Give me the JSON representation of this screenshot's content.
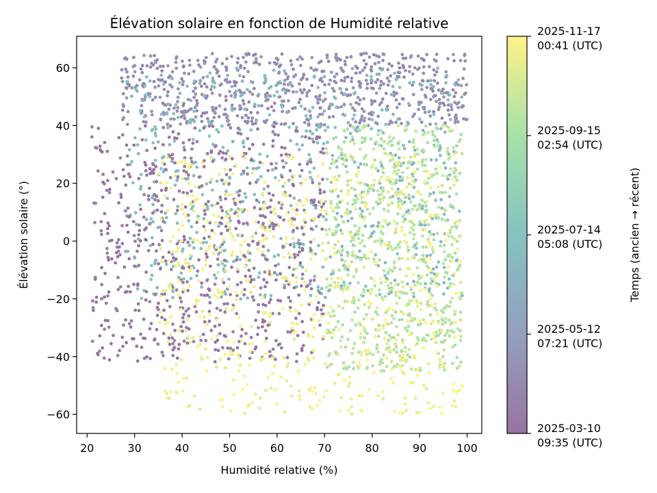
{
  "chart_data": {
    "type": "scatter",
    "title": "Élévation solaire en fonction de Humidité relative",
    "xlabel": "Humidité relative (%)",
    "ylabel": "Élévation solaire (°)",
    "xlim": [
      17.8,
      103.1
    ],
    "ylim": [
      -66.6,
      70.9
    ],
    "xticks": [
      "20",
      "30",
      "40",
      "50",
      "60",
      "70",
      "80",
      "90",
      "100"
    ],
    "yticks": [
      "−60",
      "−40",
      "−20",
      "0",
      "20",
      "40",
      "60"
    ],
    "grid": false,
    "colormap": "viridis",
    "colormap_stops": [
      "#440154",
      "#3b528b",
      "#21918c",
      "#5ec962",
      "#fde725"
    ],
    "point_alpha": 0.55,
    "colorbar": {
      "label": "Temps (ancien → récent)",
      "ticks": [
        {
          "date": "2025-03-10",
          "time": "09:35 (UTC)"
        },
        {
          "date": "2025-05-12",
          "time": "07:21 (UTC)"
        },
        {
          "date": "2025-07-14",
          "time": "05:08 (UTC)"
        },
        {
          "date": "2025-09-15",
          "time": "02:54 (UTC)"
        },
        {
          "date": "2025-11-17",
          "time": "00:41 (UTC)"
        }
      ]
    },
    "clusters": [
      {
        "time_fraction": 0.15,
        "x_range": [
          27,
          100
        ],
        "y_range": [
          40,
          65
        ],
        "description": "older points, high elevation band"
      },
      {
        "time_fraction": 0.45,
        "x_range": [
          28,
          99
        ],
        "y_range": [
          -20,
          60
        ],
        "description": "mid-season points, broad spread"
      },
      {
        "time_fraction": 0.02,
        "x_range": [
          21,
          70
        ],
        "y_range": [
          -42,
          40
        ],
        "description": "earliest points, low humidity arc"
      },
      {
        "time_fraction": 0.8,
        "x_range": [
          70,
          99
        ],
        "y_range": [
          -45,
          40
        ],
        "description": "recent points, high humidity"
      },
      {
        "time_fraction": 0.97,
        "x_range": [
          35,
          99
        ],
        "y_range": [
          -60,
          30
        ],
        "description": "latest points, incl. night loops near −50..−60"
      }
    ]
  }
}
